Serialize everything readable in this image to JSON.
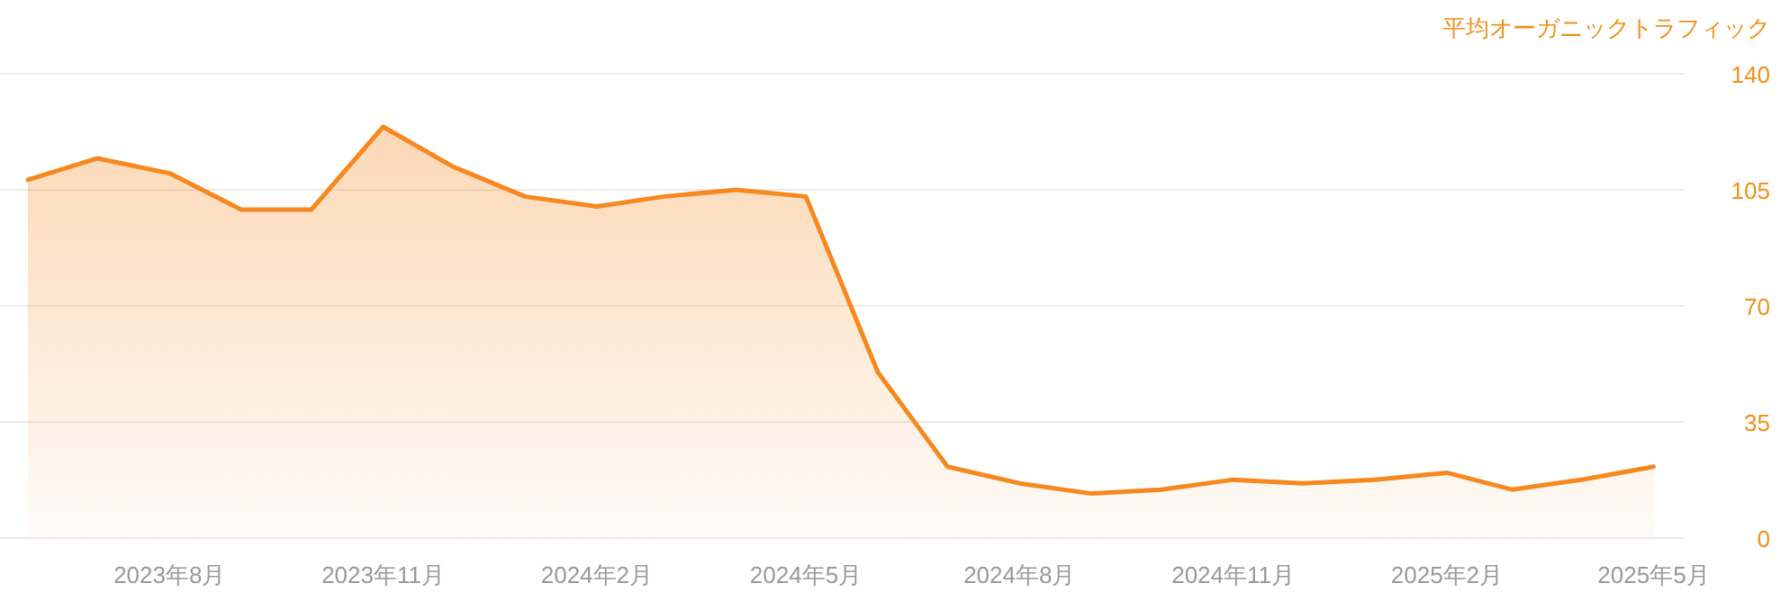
{
  "chart_data": {
    "type": "area",
    "ylabel": "平均オーガニックトラフィック",
    "x": [
      "2023-06",
      "2023-07",
      "2023-08",
      "2023-09",
      "2023-10",
      "2023-11",
      "2023-12",
      "2024-01",
      "2024-02",
      "2024-03",
      "2024-04",
      "2024-05",
      "2024-06",
      "2024-07",
      "2024-08",
      "2024-09",
      "2024-10",
      "2024-11",
      "2024-12",
      "2025-01",
      "2025-02",
      "2025-03",
      "2025-04",
      "2025-05"
    ],
    "series": [
      {
        "color": "#f5891f",
        "values": [
          108,
          114.5,
          110,
          99,
          99,
          124,
          112,
          103,
          100,
          103,
          105,
          103,
          50,
          21.5,
          16.5,
          13.4,
          14.6,
          17.6,
          16.5,
          17.6,
          19.7,
          14.6,
          17.7,
          21.5
        ]
      }
    ],
    "xlim": [
      "2023-05-20",
      "2025-05-14"
    ],
    "xticks": [
      {
        "value": "2023-08",
        "label": "2023年8月"
      },
      {
        "value": "2023-11",
        "label": "2023年11月"
      },
      {
        "value": "2024-02",
        "label": "2024年2月"
      },
      {
        "value": "2024-05",
        "label": "2024年5月"
      },
      {
        "value": "2024-08",
        "label": "2024年8月"
      },
      {
        "value": "2024-11",
        "label": "2024年11月"
      },
      {
        "value": "2025-02",
        "label": "2025年2月"
      },
      {
        "value": "2025-05",
        "label": "2025年5月"
      }
    ],
    "ylim": [
      0,
      140
    ],
    "yticks": [
      0,
      35,
      70,
      105,
      140
    ],
    "grid": "y"
  }
}
